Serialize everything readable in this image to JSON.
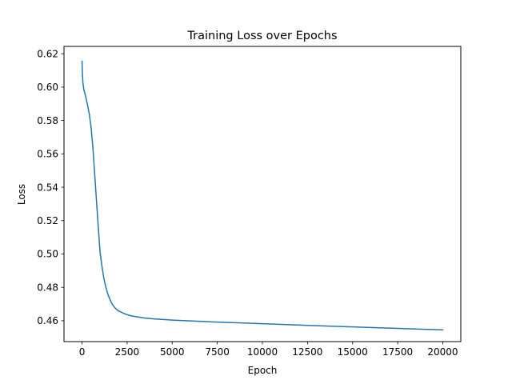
{
  "chart_data": {
    "type": "line",
    "title": "Training Loss over Epochs",
    "xlabel": "Epoch",
    "ylabel": "Loss",
    "xlim": [
      -1000,
      21000
    ],
    "ylim": [
      0.4475,
      0.6244
    ],
    "xticks": [
      0,
      2500,
      5000,
      7500,
      10000,
      12500,
      15000,
      17500,
      20000
    ],
    "yticks": [
      0.46,
      0.48,
      0.5,
      0.52,
      0.54,
      0.56,
      0.58,
      0.6,
      0.62
    ],
    "grid": false,
    "series": [
      {
        "name": "",
        "color": "#1f77b4",
        "x": [
          0,
          20,
          50,
          100,
          200,
          300,
          400,
          500,
          600,
          700,
          800,
          900,
          1000,
          1100,
          1200,
          1300,
          1400,
          1500,
          1600,
          1700,
          1800,
          1900,
          2000,
          2200,
          2400,
          2600,
          2800,
          3000,
          3500,
          4000,
          5000,
          6000,
          7500,
          10000,
          12500,
          15000,
          17500,
          20000
        ],
        "y": [
          0.6155,
          0.608,
          0.6025,
          0.5985,
          0.5945,
          0.5895,
          0.584,
          0.576,
          0.564,
          0.548,
          0.532,
          0.516,
          0.501,
          0.493,
          0.486,
          0.481,
          0.477,
          0.474,
          0.4715,
          0.4695,
          0.468,
          0.467,
          0.466,
          0.465,
          0.464,
          0.4633,
          0.4628,
          0.4624,
          0.4616,
          0.4611,
          0.4604,
          0.4599,
          0.4592,
          0.4582,
          0.4572,
          0.4563,
          0.4554,
          0.4545
        ]
      }
    ]
  }
}
